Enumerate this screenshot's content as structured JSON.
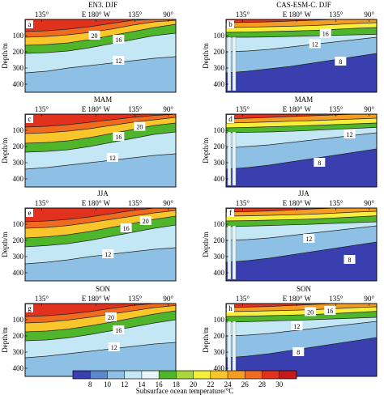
{
  "chart_data": {
    "type": "heatmap",
    "description_colors": {
      "levels": [
        8,
        10,
        12,
        14,
        16,
        18,
        20,
        22,
        24,
        26,
        28,
        30
      ],
      "colors": [
        "#3a3fb0",
        "#5b87cc",
        "#8ec0e6",
        "#c4e7f5",
        "#e8f6f9",
        "#4fb52b",
        "#a9d63c",
        "#f5ee3a",
        "#f8c52a",
        "#f59c22",
        "#ef6b1f",
        "#e0321c",
        "#c41a1a"
      ]
    },
    "colorbar": {
      "label": "Subsurface ocean temperature/°C",
      "ticks": [
        "8",
        "10",
        "12",
        "14",
        "16",
        "18",
        "20",
        "22",
        "24",
        "26",
        "28",
        "30"
      ]
    },
    "x_tick_labels": [
      "135°",
      "E 180° W",
      "135°",
      "90°"
    ],
    "ylabel": "Depth/m",
    "y_tick_labels": [
      "100",
      "200",
      "300",
      "400"
    ],
    "ylim": [
      0,
      450
    ],
    "columns": [
      "EN3. DJF",
      "CAS-ESM-C. DJF"
    ],
    "panels": [
      {
        "letter": "a",
        "title": "EN3. DJF",
        "model": "obs",
        "row": 0,
        "col": 0,
        "isotherms": {
          "t28": [
            75,
            70,
            60,
            45,
            25,
            5,
            0,
            0
          ],
          "t24": [
            110,
            105,
            95,
            80,
            60,
            35,
            15,
            5
          ],
          "t20": [
            160,
            155,
            145,
            125,
            100,
            75,
            50,
            30
          ],
          "t16": [
            210,
            205,
            195,
            175,
            150,
            125,
            100,
            85
          ],
          "t12": [
            330,
            320,
            300,
            285,
            270,
            255,
            240,
            230
          ]
        },
        "labels": [
          {
            "text": "20",
            "x": 0.46,
            "d": 100
          },
          {
            "text": "16",
            "x": 0.62,
            "d": 125
          },
          {
            "text": "12",
            "x": 0.62,
            "d": 255
          }
        ]
      },
      {
        "letter": "b",
        "title": "CAS-ESM-C. DJF",
        "model": "model",
        "row": 0,
        "col": 1,
        "isotherms": {
          "t28": [
            20,
            18,
            15,
            10,
            5,
            0,
            0,
            0
          ],
          "t24": [
            50,
            48,
            45,
            42,
            38,
            32,
            25,
            20
          ],
          "t20": [
            80,
            78,
            75,
            72,
            68,
            62,
            55,
            50
          ],
          "t16": [
            110,
            110,
            108,
            105,
            102,
            98,
            95,
            92
          ],
          "t12": [
            200,
            195,
            185,
            170,
            155,
            140,
            125,
            110
          ],
          "t8": [
            330,
            320,
            305,
            290,
            270,
            250,
            230,
            210
          ]
        },
        "labels": [
          {
            "text": "16",
            "x": 0.66,
            "d": 88
          },
          {
            "text": "12",
            "x": 0.59,
            "d": 152
          },
          {
            "text": "8",
            "x": 0.76,
            "d": 260
          }
        ]
      },
      {
        "letter": "c",
        "title": "MAM",
        "model": "obs",
        "row": 1,
        "col": 0,
        "isotherms": {
          "t28": [
            80,
            75,
            65,
            50,
            35,
            20,
            8,
            0
          ],
          "t24": [
            120,
            115,
            105,
            90,
            70,
            50,
            35,
            20
          ],
          "t20": [
            180,
            175,
            165,
            145,
            120,
            95,
            70,
            55
          ],
          "t16": [
            235,
            230,
            220,
            200,
            175,
            150,
            125,
            110
          ],
          "t12": [
            340,
            330,
            315,
            300,
            285,
            270,
            255,
            245
          ]
        },
        "labels": [
          {
            "text": "20",
            "x": 0.76,
            "d": 78
          },
          {
            "text": "16",
            "x": 0.62,
            "d": 140
          },
          {
            "text": "12",
            "x": 0.58,
            "d": 270
          }
        ]
      },
      {
        "letter": "d",
        "title": "MAM",
        "model": "model",
        "row": 1,
        "col": 1,
        "isotherms": {
          "t28": [
            30,
            25,
            20,
            15,
            10,
            5,
            0,
            0
          ],
          "t24": [
            55,
            52,
            48,
            44,
            40,
            35,
            30,
            25
          ],
          "t20": [
            85,
            82,
            78,
            74,
            70,
            65,
            60,
            55
          ],
          "t16": [
            115,
            112,
            110,
            106,
            100,
            94,
            88,
            82
          ],
          "t12": [
            210,
            200,
            190,
            175,
            160,
            145,
            130,
            115
          ],
          "t8": [
            340,
            330,
            315,
            295,
            275,
            255,
            235,
            215
          ]
        },
        "labels": [
          {
            "text": "12",
            "x": 0.82,
            "d": 125
          },
          {
            "text": "8",
            "x": 0.62,
            "d": 300
          }
        ]
      },
      {
        "letter": "e",
        "title": "JJA",
        "model": "obs",
        "row": 2,
        "col": 0,
        "isotherms": {
          "t28": [
            85,
            80,
            70,
            55,
            35,
            15,
            0,
            0
          ],
          "t24": [
            125,
            120,
            108,
            90,
            70,
            50,
            30,
            15
          ],
          "t20": [
            185,
            178,
            165,
            145,
            120,
            95,
            70,
            50
          ],
          "t16": [
            240,
            232,
            220,
            200,
            175,
            150,
            125,
            105
          ],
          "t12": [
            345,
            335,
            320,
            300,
            285,
            270,
            255,
            245
          ]
        },
        "labels": [
          {
            "text": "20",
            "x": 0.8,
            "d": 80
          },
          {
            "text": "16",
            "x": 0.67,
            "d": 125
          },
          {
            "text": "12",
            "x": 0.55,
            "d": 285
          }
        ]
      },
      {
        "letter": "f",
        "title": "JJA",
        "model": "model",
        "row": 2,
        "col": 1,
        "isotherms": {
          "t28": [
            25,
            22,
            18,
            12,
            6,
            0,
            0,
            0
          ],
          "t24": [
            50,
            48,
            45,
            42,
            38,
            32,
            25,
            20
          ],
          "t20": [
            80,
            78,
            75,
            72,
            68,
            62,
            55,
            48
          ],
          "t16": [
            115,
            112,
            108,
            104,
            100,
            95,
            90,
            85
          ],
          "t12": [
            200,
            195,
            185,
            170,
            155,
            140,
            125,
            110
          ],
          "t8": [
            335,
            325,
            310,
            290,
            270,
            250,
            230,
            210
          ]
        },
        "labels": [
          {
            "text": "12",
            "x": 0.55,
            "d": 190
          },
          {
            "text": "8",
            "x": 0.82,
            "d": 320
          }
        ]
      },
      {
        "letter": "g",
        "title": "SON",
        "model": "obs",
        "row": 3,
        "col": 0,
        "isotherms": {
          "t28": [
            80,
            75,
            65,
            50,
            30,
            12,
            0,
            0
          ],
          "t24": [
            120,
            115,
            102,
            85,
            65,
            45,
            25,
            12
          ],
          "t20": [
            175,
            170,
            158,
            138,
            115,
            90,
            65,
            45
          ],
          "t16": [
            230,
            225,
            212,
            192,
            168,
            145,
            120,
            100
          ],
          "t12": [
            335,
            325,
            310,
            295,
            280,
            265,
            250,
            240
          ]
        },
        "labels": [
          {
            "text": "20",
            "x": 0.57,
            "d": 85
          },
          {
            "text": "16",
            "x": 0.62,
            "d": 165
          },
          {
            "text": "12",
            "x": 0.59,
            "d": 270
          }
        ]
      },
      {
        "letter": "h",
        "title": "SON",
        "model": "model",
        "row": 3,
        "col": 1,
        "isotherms": {
          "t28": [
            25,
            22,
            18,
            12,
            6,
            0,
            0,
            0
          ],
          "t24": [
            50,
            48,
            45,
            42,
            38,
            32,
            25,
            20
          ],
          "t20": [
            80,
            78,
            75,
            72,
            68,
            62,
            55,
            48
          ],
          "t16": [
            115,
            112,
            108,
            104,
            100,
            95,
            90,
            85
          ],
          "t12": [
            200,
            195,
            185,
            170,
            155,
            140,
            125,
            110
          ],
          "t8": [
            335,
            325,
            310,
            290,
            270,
            250,
            230,
            210
          ]
        },
        "labels": [
          {
            "text": "20",
            "x": 0.56,
            "d": 52
          },
          {
            "text": "16",
            "x": 0.69,
            "d": 45
          },
          {
            "text": "12",
            "x": 0.47,
            "d": 140
          },
          {
            "text": "8",
            "x": 0.48,
            "d": 300
          }
        ]
      }
    ]
  }
}
